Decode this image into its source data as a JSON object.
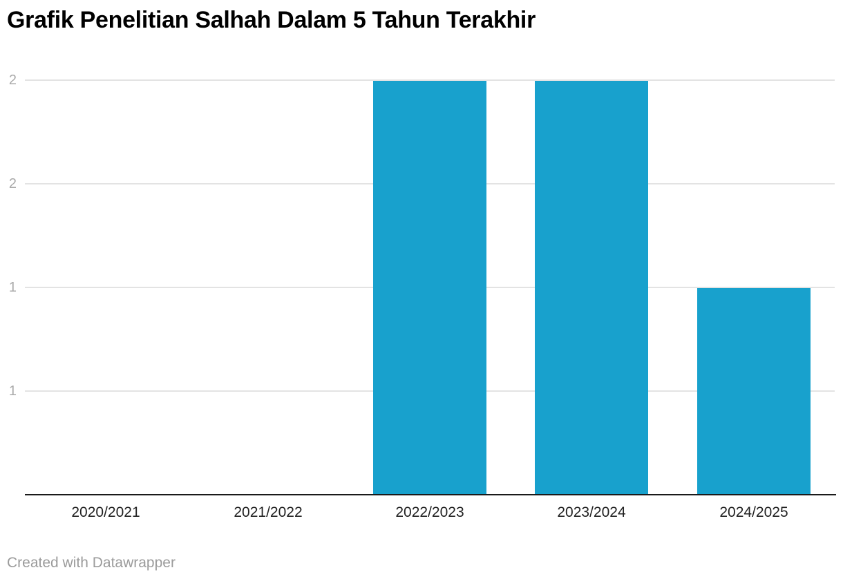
{
  "chart_data": {
    "type": "bar",
    "title": "Grafik Penelitian Salhah Dalam 5 Tahun Terakhir",
    "categories": [
      "2020/2021",
      "2021/2022",
      "2022/2023",
      "2023/2024",
      "2024/2025"
    ],
    "values": [
      0,
      0,
      2,
      2,
      1
    ],
    "xlabel": "",
    "ylabel": "",
    "ylim": [
      0,
      2
    ],
    "grid": true,
    "legend_position": "none",
    "y_ticks": [
      {
        "value": 2.0,
        "label": "2"
      },
      {
        "value": 1.5,
        "label": "2"
      },
      {
        "value": 1.0,
        "label": "1"
      },
      {
        "value": 0.5,
        "label": "1"
      }
    ]
  },
  "footer": {
    "text": "Created with Datawrapper"
  },
  "colors": {
    "background": "#ffffff",
    "title": "#000000",
    "bar": "#18a1cd",
    "gridline": "#e3e3e3",
    "baseline": "#1a1a1a",
    "y_tick_label": "#aaaaaa",
    "x_tick_label": "#222222",
    "footer_text": "#9b9b9b"
  }
}
